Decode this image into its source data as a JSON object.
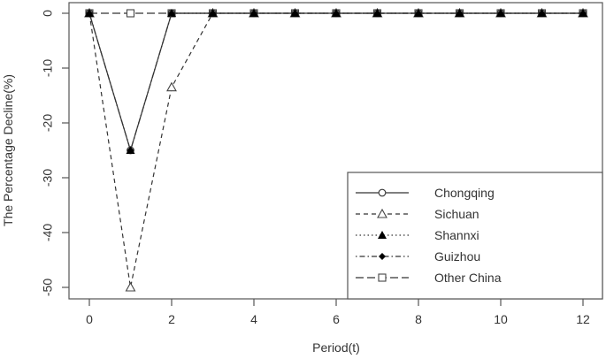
{
  "chart_data": {
    "type": "line",
    "title": "",
    "xlabel": "Period(t)",
    "ylabel": "The Percentage Decline(%)",
    "x": [
      0,
      1,
      2,
      3,
      4,
      5,
      6,
      7,
      8,
      9,
      10,
      11,
      12
    ],
    "xlim": [
      0,
      12
    ],
    "ylim": [
      -50,
      0
    ],
    "x_ticks": [
      "0",
      "2",
      "4",
      "6",
      "8",
      "10",
      "12"
    ],
    "y_ticks": [
      "0",
      "-10",
      "-20",
      "-30",
      "-40",
      "-50"
    ],
    "grid": false,
    "legend_position": "bottom-right",
    "series": [
      {
        "name": "Chongqing",
        "marker": "open-circle",
        "line": "solid",
        "values": [
          0,
          -25,
          0,
          0,
          0,
          0,
          0,
          0,
          0,
          0,
          0,
          0,
          0
        ]
      },
      {
        "name": "Sichuan",
        "marker": "open-triangle",
        "line": "dashed",
        "values": [
          0,
          -50,
          -13.5,
          0,
          0,
          0,
          0,
          0,
          0,
          0,
          0,
          0,
          0
        ]
      },
      {
        "name": "Shannxi",
        "marker": "filled-triangle",
        "line": "dotted",
        "values": [
          0,
          -25,
          0,
          0,
          0,
          0,
          0,
          0,
          0,
          0,
          0,
          0,
          0
        ]
      },
      {
        "name": "Guizhou",
        "marker": "filled-diamond",
        "line": "dotdash",
        "values": [
          0,
          -25,
          0,
          0,
          0,
          0,
          0,
          0,
          0,
          0,
          0,
          0,
          0
        ]
      },
      {
        "name": "Other China",
        "marker": "open-square",
        "line": "longdash",
        "values": [
          0,
          0,
          0,
          0,
          0,
          0,
          0,
          0,
          0,
          0,
          0,
          0,
          0
        ]
      }
    ]
  }
}
